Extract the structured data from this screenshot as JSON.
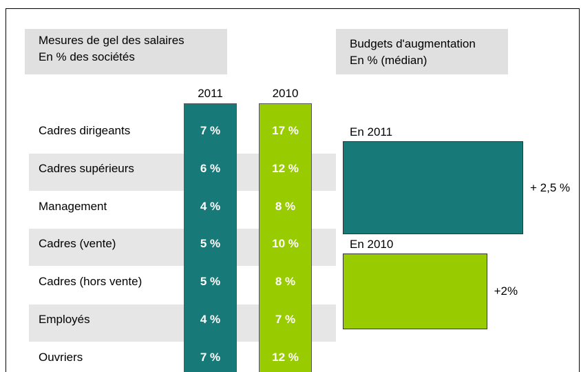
{
  "left_panel": {
    "title_lines": [
      "Mesures de gel des salaires",
      "En % des sociétés"
    ],
    "columns": [
      {
        "name": "2011",
        "color": "#177a78"
      },
      {
        "name": "2010",
        "color": "#99cc00"
      }
    ],
    "rows": [
      {
        "label": "Cadres dirigeants",
        "values": [
          "7 %",
          "17 %"
        ]
      },
      {
        "label": "Cadres supérieurs",
        "values": [
          "6 %",
          "12 %"
        ]
      },
      {
        "label": "Management",
        "values": [
          "4 %",
          "8 %"
        ]
      },
      {
        "label": "Cadres (vente)",
        "values": [
          "5 %",
          "10 %"
        ]
      },
      {
        "label": "Cadres (hors vente)",
        "values": [
          "5 %",
          "8 %"
        ]
      },
      {
        "label": "Employés",
        "values": [
          "4 %",
          "7 %"
        ]
      },
      {
        "label": "Ouvriers",
        "values": [
          "7 %",
          "12 %"
        ]
      }
    ]
  },
  "right_panel": {
    "title_lines": [
      "Budgets d'augmentation",
      "En % (médian)"
    ],
    "bars": [
      {
        "name": "En 2011",
        "value": 2.5,
        "value_label": "+ 2,5 %",
        "color": "#177a78"
      },
      {
        "name": "En 2010",
        "value": 2,
        "value_label": "+2%",
        "color": "#99cc00"
      }
    ]
  }
}
